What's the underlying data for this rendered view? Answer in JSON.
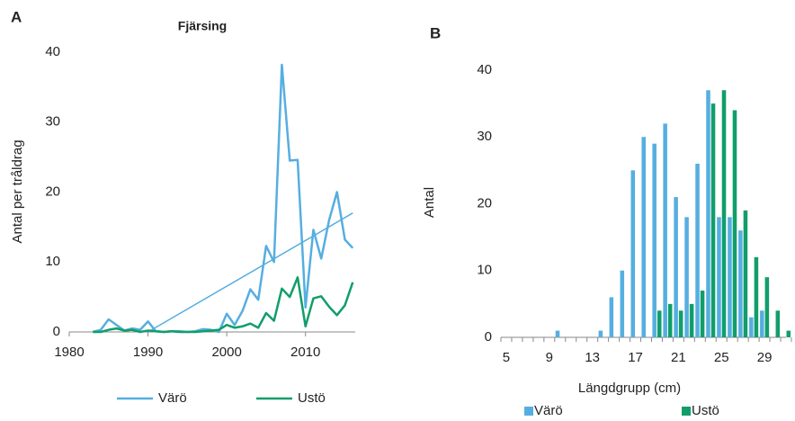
{
  "chart_data": [
    {
      "type": "line",
      "panel_label": "A",
      "title": "Fjärsing",
      "y_label": "Antal per tråldrag",
      "xlim": [
        1980,
        2017
      ],
      "xticks": [
        1980,
        1990,
        2000,
        2010
      ],
      "ylim": [
        0,
        40
      ],
      "yticks": [
        0,
        10,
        20,
        30,
        40
      ],
      "x": [
        1983,
        1984,
        1985,
        1986,
        1987,
        1988,
        1989,
        1990,
        1991,
        1992,
        1993,
        1994,
        1995,
        1996,
        1997,
        1998,
        1999,
        2000,
        2001,
        2002,
        2003,
        2004,
        2005,
        2006,
        2007,
        2008,
        2009,
        2010,
        2011,
        2012,
        2013,
        2014,
        2015,
        2016
      ],
      "series": [
        {
          "name": "Värö",
          "color": "#56aee0",
          "values": [
            0,
            0.3,
            1.8,
            1,
            0.2,
            0.5,
            0.3,
            1.5,
            0.1,
            0,
            0.1,
            0.1,
            0,
            0.1,
            0.4,
            0.3,
            0,
            2.6,
            1,
            3,
            6.1,
            4.6,
            12.3,
            10,
            38.2,
            24.5,
            24.6,
            3.5,
            14.6,
            10.5,
            16,
            20,
            13.2,
            12
          ],
          "trend": {
            "x": [
              1990,
              2016
            ],
            "values": [
              0,
              17
            ]
          }
        },
        {
          "name": "Ustö",
          "color": "#119e6a",
          "values": [
            0,
            0,
            0.3,
            0.5,
            0.2,
            0.3,
            0,
            0.2,
            0.1,
            0,
            0.1,
            0,
            0,
            0,
            0.1,
            0.2,
            0.3,
            1,
            0.6,
            0.8,
            1.2,
            0.6,
            2.7,
            1.6,
            6.2,
            5,
            7.8,
            0.8,
            4.8,
            5.1,
            3.6,
            2.4,
            3.8,
            7.1
          ]
        }
      ]
    },
    {
      "type": "bar",
      "panel_label": "B",
      "x_label": "Längdgrupp (cm)",
      "y_label": "Antal",
      "ylim": [
        0,
        40
      ],
      "yticks": [
        0,
        10,
        20,
        30,
        40
      ],
      "categories": [
        5,
        null,
        null,
        null,
        9,
        null,
        null,
        null,
        13,
        null,
        null,
        null,
        17,
        null,
        null,
        null,
        21,
        null,
        null,
        null,
        25,
        null,
        null,
        null,
        29,
        null,
        null
      ],
      "series": [
        {
          "name": "Värö",
          "color": "#56aee0",
          "values": [
            null,
            null,
            null,
            null,
            null,
            1,
            null,
            null,
            null,
            1,
            6,
            10,
            25,
            30,
            29,
            32,
            21,
            18,
            26,
            37,
            18,
            18,
            16,
            3,
            4,
            null,
            null
          ]
        },
        {
          "name": "Ustö",
          "color": "#119e6a",
          "values": [
            null,
            null,
            null,
            null,
            null,
            null,
            null,
            null,
            null,
            null,
            null,
            null,
            null,
            null,
            4,
            5,
            4,
            5,
            7,
            35,
            37,
            34,
            19,
            12,
            9,
            4,
            1
          ]
        }
      ]
    }
  ]
}
